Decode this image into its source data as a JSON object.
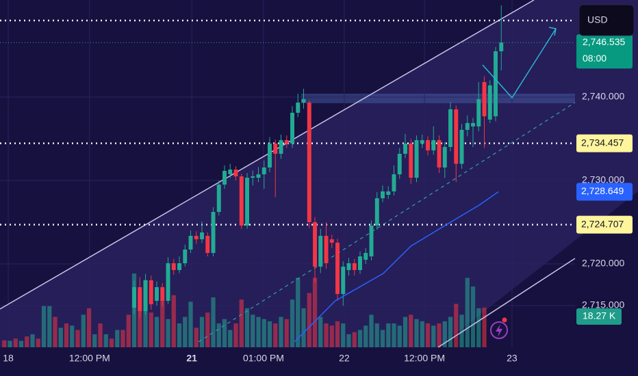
{
  "chart_data": {
    "type": "candlestick",
    "currency": "USD",
    "xlim": [
      -0.76,
      101.06
    ],
    "ylim": [
      2710.0,
      2751.64
    ],
    "xticks": [
      {
        "value": 0.7,
        "label": "18"
      },
      {
        "value": 15.1,
        "label": "12:00 PM"
      },
      {
        "value": 33.2,
        "label": "21"
      },
      {
        "value": 45.9,
        "label": "01:00 PM"
      },
      {
        "value": 60.2,
        "label": "22"
      },
      {
        "value": 74.4,
        "label": "12:00 PM"
      },
      {
        "value": 89.9,
        "label": "23"
      }
    ],
    "yticks": [
      {
        "value": 2715,
        "label": "2,715.000"
      },
      {
        "value": 2720,
        "label": "2,720.000"
      },
      {
        "value": 2730,
        "label": "2,730.000"
      },
      {
        "value": 2740,
        "label": "2,740.000"
      }
    ],
    "up_color": "#22ab94",
    "down_color": "#f23645",
    "candles": {
      "x": [
        23,
        24,
        25,
        26,
        27,
        28,
        29,
        30,
        31,
        32,
        33,
        34,
        35,
        36,
        37,
        38,
        39,
        40,
        41,
        42,
        43,
        44,
        45,
        46,
        47,
        48,
        49,
        50,
        51,
        52,
        53,
        54,
        55,
        56,
        57,
        58,
        59,
        60,
        61,
        62,
        63,
        64,
        65,
        66,
        67,
        68,
        69,
        70,
        71,
        72,
        73,
        74,
        75,
        76,
        77,
        78,
        79,
        80,
        81,
        82,
        83,
        84,
        85,
        86,
        87,
        88
      ],
      "open": [
        2714.75,
        2717.21,
        2714.34,
        2718.03,
        2715.57,
        2717.21,
        2715.57,
        2720.08,
        2719.26,
        2720.08,
        2721.72,
        2723.36,
        2722.95,
        2723.36,
        2721.31,
        2726.23,
        2729.51,
        2730.74,
        2731.31,
        2730.49,
        2724.59,
        2730.33,
        2730.33,
        2730.74,
        2731.56,
        2734.43,
        2733.2,
        2734.84,
        2734.43,
        2738.12,
        2739.34,
        2739.34,
        2725.0,
        2719.67,
        2723.36,
        2722.95,
        2722.54,
        2716.39,
        2719.26,
        2720.08,
        2719.26,
        2720.49,
        2720.9,
        2724.59,
        2727.87,
        2728.28,
        2728.69,
        2730.74,
        2733.2,
        2734.43,
        2730.33,
        2734.43,
        2734.84,
        2733.61,
        2734.84,
        2731.56,
        2734.02,
        2738.53,
        2732.0,
        2736.07,
        2736.48,
        2736.48,
        2741.8,
        2737.3,
        2737.7,
        2745.49
      ],
      "high": [
        2718.0,
        2718.4,
        2718.8,
        2718.6,
        2717.9,
        2717.7,
        2720.8,
        2720.6,
        2720.9,
        2722.3,
        2724.0,
        2723.9,
        2725.1,
        2723.8,
        2726.8,
        2730.0,
        2731.8,
        2732.0,
        2731.7,
        2730.8,
        2730.9,
        2731.2,
        2731.6,
        2732.4,
        2735.2,
        2734.9,
        2735.5,
        2735.4,
        2738.9,
        2740.4,
        2741.0,
        2739.6,
        2725.6,
        2724.2,
        2725.0,
        2723.5,
        2723.0,
        2720.3,
        2720.7,
        2720.6,
        2721.5,
        2721.9,
        2725.2,
        2728.6,
        2729.4,
        2729.3,
        2731.8,
        2733.9,
        2735.6,
        2735.0,
        2735.4,
        2735.5,
        2735.3,
        2736.5,
        2735.4,
        2734.6,
        2739.4,
        2739.0,
        2736.8,
        2737.8,
        2737.5,
        2741.8,
        2742.5,
        2742.0,
        2746.0,
        2751.0
      ],
      "low": [
        2714.0,
        2713.5,
        2713.9,
        2714.5,
        2715.0,
        2714.9,
        2715.2,
        2718.7,
        2718.9,
        2719.7,
        2721.3,
        2722.4,
        2722.5,
        2720.9,
        2720.9,
        2725.8,
        2729.0,
        2730.3,
        2730.0,
        2724.2,
        2724.2,
        2729.4,
        2729.8,
        2729.0,
        2731.0,
        2728.0,
        2732.6,
        2733.9,
        2733.9,
        2737.6,
        2738.6,
        2724.3,
        2717.7,
        2718.9,
        2719.4,
        2721.9,
        2715.6,
        2715.0,
        2718.6,
        2718.6,
        2718.8,
        2720.0,
        2720.4,
        2724.1,
        2727.4,
        2727.8,
        2728.2,
        2730.2,
        2732.7,
        2729.6,
        2729.8,
        2733.9,
        2733.0,
        2733.1,
        2730.9,
        2730.3,
        2733.5,
        2729.8,
        2731.4,
        2735.3,
        2734.0,
        2735.9,
        2733.9,
        2736.9,
        2737.1,
        2743.2
      ],
      "close": [
        2717.21,
        2714.34,
        2718.03,
        2715.16,
        2717.21,
        2715.57,
        2720.08,
        2719.26,
        2720.08,
        2721.72,
        2723.36,
        2722.95,
        2723.77,
        2721.31,
        2726.23,
        2729.51,
        2731.15,
        2731.31,
        2730.49,
        2724.59,
        2730.33,
        2730.5,
        2730.74,
        2731.56,
        2734.43,
        2733.2,
        2734.84,
        2734.43,
        2738.12,
        2739.34,
        2739.75,
        2725.0,
        2719.67,
        2723.36,
        2720.08,
        2722.54,
        2716.39,
        2719.67,
        2720.08,
        2719.26,
        2720.9,
        2721.31,
        2724.59,
        2727.87,
        2728.69,
        2728.69,
        2730.74,
        2733.2,
        2734.43,
        2730.33,
        2734.84,
        2734.84,
        2733.61,
        2734.84,
        2731.56,
        2734.02,
        2738.53,
        2732.0,
        2736.07,
        2736.89,
        2736.89,
        2739.75,
        2737.7,
        2741.4,
        2745.49,
        2746.54
      ]
    },
    "volume": {
      "vlim": [
        0,
        160
      ],
      "x": [
        0,
        1,
        2,
        3,
        4,
        5,
        6,
        7,
        8,
        9,
        10,
        11,
        12,
        13,
        14,
        15,
        16,
        17,
        18,
        19,
        20,
        21,
        22,
        23,
        24,
        25,
        26,
        27,
        28,
        29,
        30,
        31,
        32,
        33,
        34,
        35,
        36,
        37,
        38,
        39,
        40,
        41,
        42,
        43,
        44,
        45,
        46,
        47,
        48,
        49,
        50,
        51,
        52,
        53,
        54,
        55,
        56,
        57,
        58,
        59,
        60,
        61,
        62,
        63,
        64,
        65,
        66,
        67,
        68,
        69,
        70,
        71,
        72,
        73,
        74,
        75,
        76,
        77,
        78,
        79,
        80,
        81,
        82,
        83,
        84,
        85
      ],
      "values": [
        3.2,
        3,
        4,
        3,
        5,
        6,
        4,
        19,
        19,
        14,
        9,
        11,
        10,
        8,
        15,
        18,
        6,
        11,
        6,
        4,
        8,
        8,
        15,
        34,
        25,
        31,
        16,
        14,
        22,
        13,
        24,
        11,
        14,
        21,
        9,
        14,
        16,
        23,
        11,
        13,
        8,
        11,
        22,
        18,
        15,
        14,
        13,
        12,
        11,
        14,
        13,
        22,
        32,
        18,
        25,
        32,
        14,
        11,
        10,
        12,
        11,
        6,
        7,
        8,
        10,
        15,
        11,
        8,
        11,
        11,
        10,
        14,
        15,
        13,
        12,
        11,
        10,
        11,
        12,
        14,
        20,
        15,
        32,
        28,
        18,
        18.27
      ],
      "colors": [
        "#f23645",
        "#22ab94",
        "#f23645",
        "#22ab94",
        "#f23645",
        "#22ab94",
        "#f23645",
        "#22ab94",
        "#22ab94",
        "#f23645",
        "#22ab94",
        "#f23645",
        "#22ab94",
        "#f23645",
        "#22ab94",
        "#f23645",
        "#22ab94",
        "#f23645",
        "#22ab94",
        "#f23645",
        "#22ab94",
        "#f23645",
        "#f23645",
        "#22ab94",
        "#f23645",
        "#22ab94",
        "#f23645",
        "#22ab94",
        "#f23645",
        "#22ab94",
        "#f23645",
        "#22ab94",
        "#22ab94",
        "#22ab94",
        "#f23645",
        "#22ab94",
        "#f23645",
        "#22ab94",
        "#22ab94",
        "#22ab94",
        "#22ab94",
        "#f23645",
        "#f23645",
        "#22ab94",
        "#22ab94",
        "#22ab94",
        "#22ab94",
        "#22ab94",
        "#f23645",
        "#22ab94",
        "#f23645",
        "#22ab94",
        "#22ab94",
        "#22ab94",
        "#f23645",
        "#f23645",
        "#22ab94",
        "#f23645",
        "#f23645",
        "#f23645",
        "#22ab94",
        "#22ab94",
        "#f23645",
        "#22ab94",
        "#22ab94",
        "#22ab94",
        "#22ab94",
        "#22ab94",
        "#22ab94",
        "#22ab94",
        "#22ab94",
        "#22ab94",
        "#f23645",
        "#22ab94",
        "#22ab94",
        "#f23645",
        "#22ab94",
        "#f23645",
        "#22ab94",
        "#22ab94",
        "#f23645",
        "#22ab94",
        "#22ab94",
        "#22ab94",
        "#22ab94",
        "#f23645"
      ],
      "last_label": "18.27 K"
    },
    "ma": {
      "color": "#2962ff",
      "x": [
        51.4,
        58.6,
        67.1,
        72,
        78,
        84.1,
        87.5
      ],
      "values": [
        2710.66,
        2715.57,
        2718.85,
        2722.13,
        2724.59,
        2727.05,
        2728.649
      ],
      "label": "2,728.649"
    },
    "levels": [
      {
        "value": 2749.18
      },
      {
        "value": 2734.457,
        "label": "2,734.457"
      },
      {
        "value": 2724.707,
        "label": "2,724.707"
      }
    ],
    "price": {
      "value": 2746.535,
      "label": "2,746.535",
      "countdown": "08:00"
    }
  }
}
